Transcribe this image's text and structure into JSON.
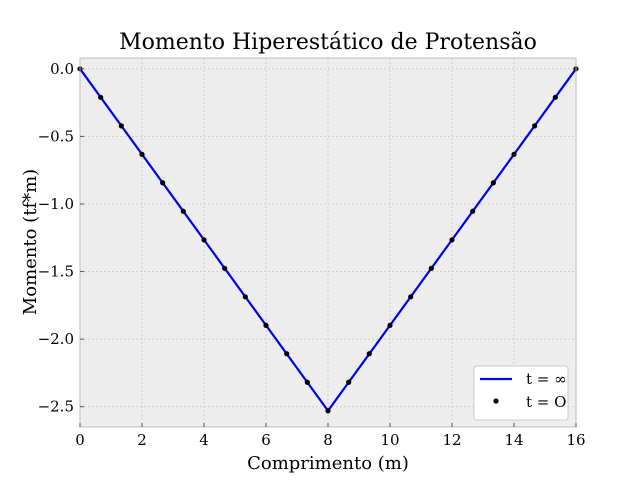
{
  "chart_data": {
    "type": "line",
    "title": "Momento Hiperestático de Protensão",
    "xlabel": "Comprimento (m)",
    "ylabel": "Momento (tf*m)",
    "xlim": [
      0,
      16
    ],
    "ylim": [
      -2.65,
      0.08
    ],
    "xticks": [
      0,
      2,
      4,
      6,
      8,
      10,
      12,
      14,
      16
    ],
    "xtick_labels": [
      "0",
      "2",
      "4",
      "6",
      "8",
      "10",
      "12",
      "14",
      "16"
    ],
    "yticks": [
      0.0,
      -0.5,
      -1.0,
      -1.5,
      -2.0,
      -2.5
    ],
    "ytick_labels": [
      "0.0",
      "−0.5",
      "−1.0",
      "−1.5",
      "−2.0",
      "−2.5"
    ],
    "grid": true,
    "legend_position": "bottom-right",
    "series": [
      {
        "name": "t = ∞",
        "style": "line",
        "color": "#0000ee",
        "x": [
          0,
          8,
          16
        ],
        "y": [
          0,
          -2.53,
          0
        ]
      },
      {
        "name": "t = O",
        "style": "points",
        "color": "#000000",
        "x": [
          0,
          0.667,
          1.333,
          2,
          2.667,
          3.333,
          4,
          4.667,
          5.333,
          6,
          6.667,
          7.333,
          8,
          8.667,
          9.333,
          10,
          10.667,
          11.333,
          12,
          12.667,
          13.333,
          14,
          14.667,
          15.333,
          16
        ],
        "y": [
          0,
          -0.211,
          -0.422,
          -0.633,
          -0.843,
          -1.054,
          -1.265,
          -1.476,
          -1.687,
          -1.898,
          -2.108,
          -2.319,
          -2.53,
          -2.319,
          -2.108,
          -1.898,
          -1.687,
          -1.476,
          -1.265,
          -1.054,
          -0.843,
          -0.633,
          -0.422,
          -0.211,
          0
        ]
      }
    ]
  }
}
